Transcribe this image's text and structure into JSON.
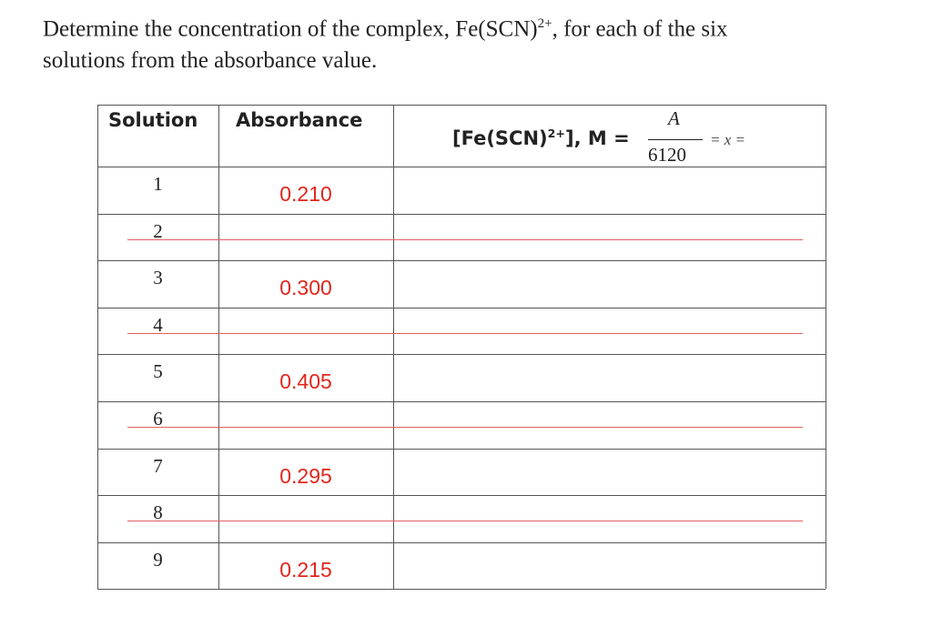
{
  "intro": {
    "before": "Determine the concentration of the complex, Fe(SCN)",
    "sup": "2+",
    "after": ", for each of the six",
    "line2": "solutions from the absorbance value."
  },
  "table": {
    "headers": {
      "solution": "Solution",
      "absorbance": "Absorbance",
      "concentration": {
        "prefix": "[Fe(SCN)",
        "sup": "2+",
        "suffix": "], M =",
        "numerator": "A",
        "denominator": "6120",
        "tail": "= x ="
      }
    },
    "rows": [
      {
        "solution": "1",
        "absorbance": "0.210"
      },
      {
        "solution": "2"
      },
      {
        "solution": "3",
        "absorbance": "0.300"
      },
      {
        "solution": "4"
      },
      {
        "solution": "5",
        "absorbance": "0.405"
      },
      {
        "solution": "6"
      },
      {
        "solution": "7",
        "absorbance": "0.295"
      },
      {
        "solution": "8"
      },
      {
        "solution": "9",
        "absorbance": "0.215"
      }
    ]
  }
}
